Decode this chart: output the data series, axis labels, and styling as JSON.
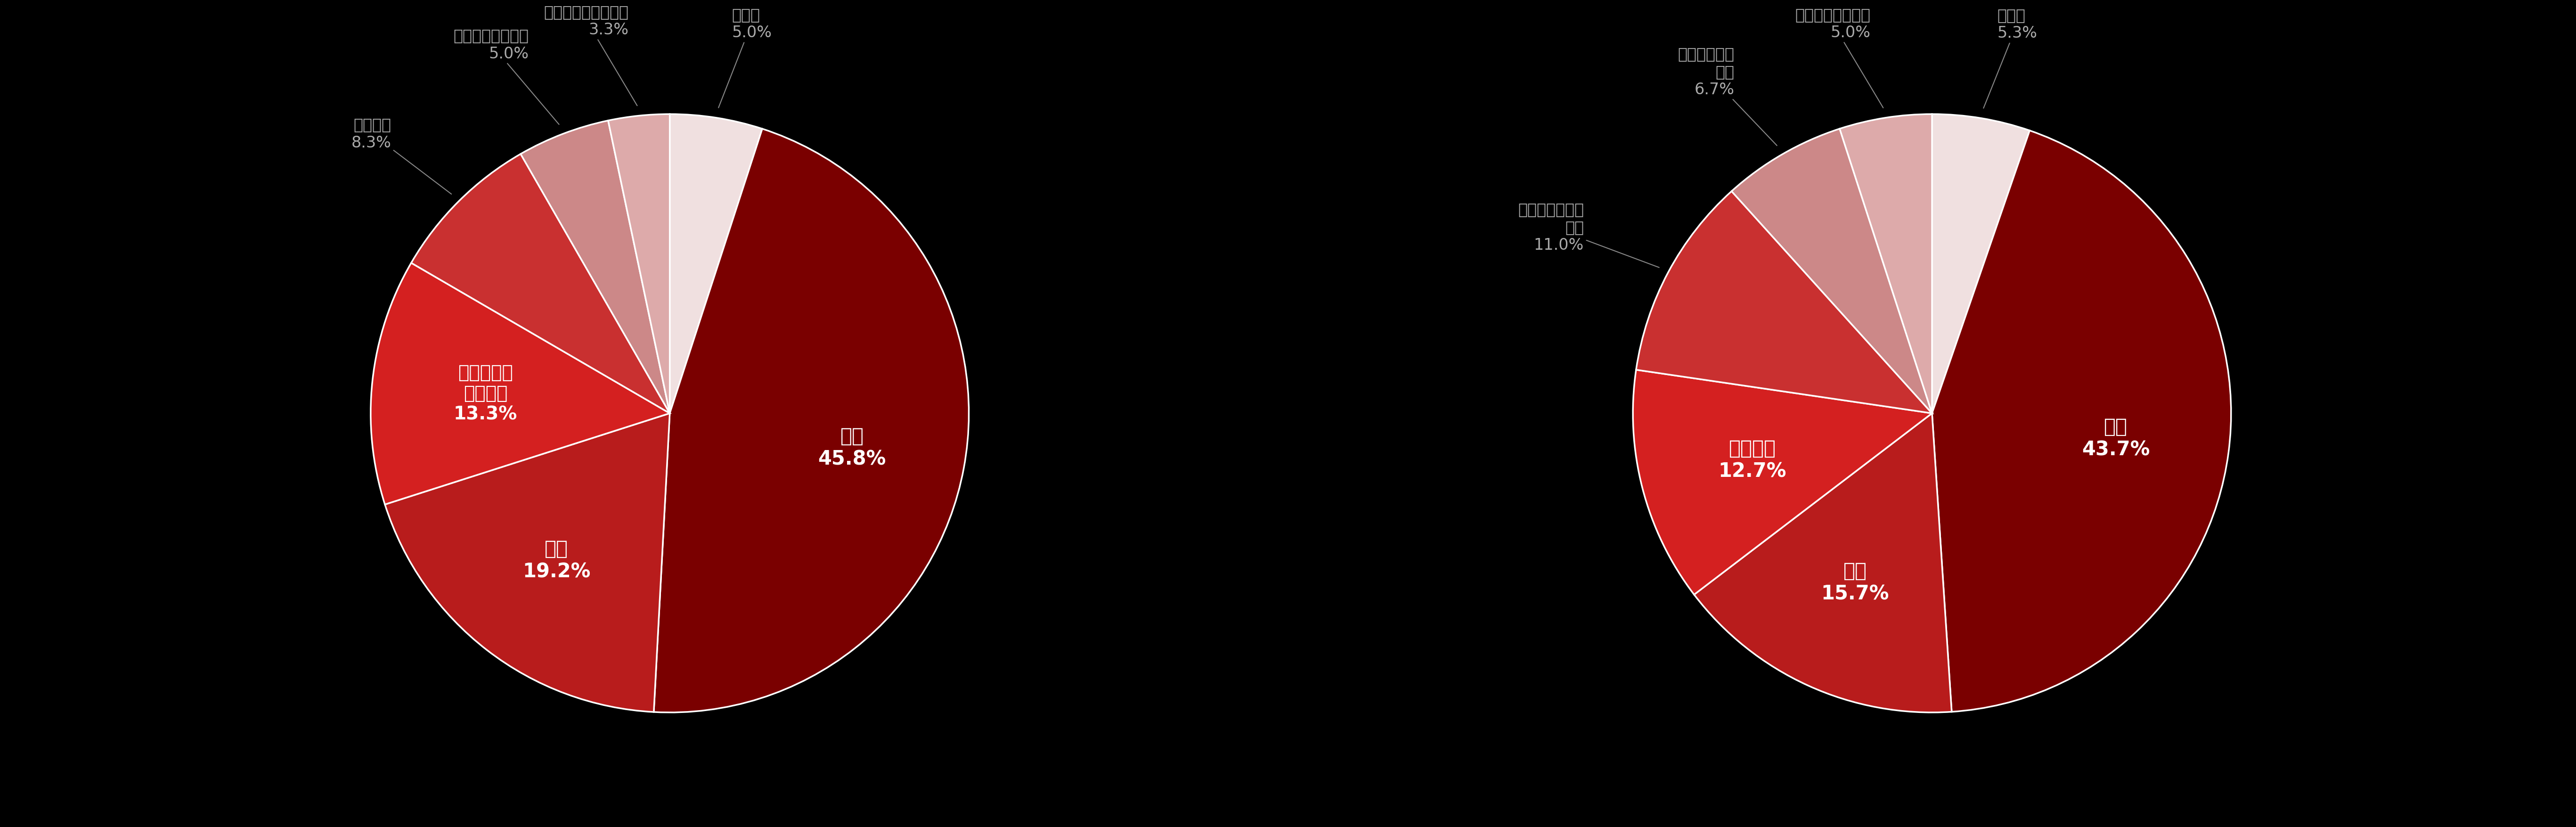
{
  "background_color": "#000000",
  "chart1": {
    "labels_ordered": [
      "その他",
      "製造",
      "金融",
      "ソフトウェア・通信",
      "サービス",
      "エネルギー・運輸",
      "卸売・小売業・商業"
    ],
    "values_ordered": [
      5.0,
      45.8,
      19.2,
      13.3,
      8.3,
      5.0,
      3.3
    ],
    "colors_ordered": [
      "#f0e0e0",
      "#7a0000",
      "#b81c1c",
      "#d42020",
      "#c93030",
      "#cc8888",
      "#ddaaaa"
    ],
    "inside_labels": [
      "製造",
      "金融",
      "ソフトウェア・通信"
    ],
    "outside_labels": [
      "その他",
      "サービス",
      "エネルギー・運輸",
      "卸売・小売業・商業"
    ]
  },
  "chart2": {
    "labels_ordered": [
      "その他",
      "製造",
      "金融",
      "サービス",
      "ソフトウェア・通信",
      "卸売・小売・商業",
      "エネルギー・運輸"
    ],
    "values_ordered": [
      5.3,
      43.7,
      15.7,
      12.7,
      11.0,
      6.7,
      5.0
    ],
    "colors_ordered": [
      "#f0e0e0",
      "#7a0000",
      "#b81c1c",
      "#d42020",
      "#c93030",
      "#cc8888",
      "#ddaaaa"
    ],
    "inside_labels": [
      "製造",
      "金融",
      "サービス"
    ],
    "outside_labels": [
      "その他",
      "ソフトウェア・通信",
      "卸売・小売・商業",
      "エネルギー・運輸"
    ]
  },
  "inside_font_size": 30,
  "outside_font_size": 24,
  "label_color_outside": "#aaaaaa",
  "label_color_inside": "#ffffff"
}
